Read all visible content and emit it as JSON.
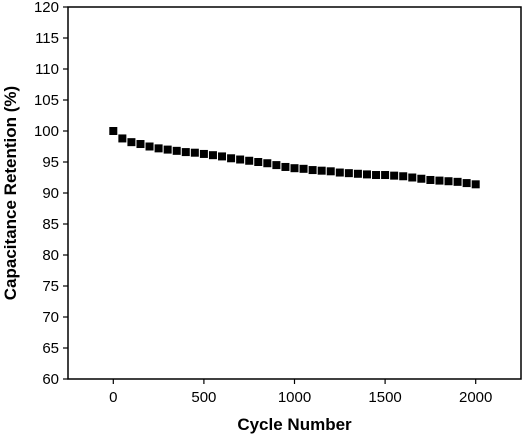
{
  "chart_data": {
    "type": "scatter",
    "title": "",
    "xlabel": "Cycle Number",
    "ylabel": "Capacitance Retention (%)",
    "xlim": [
      -250,
      2250
    ],
    "ylim": [
      60,
      120
    ],
    "x_ticks": [
      0,
      500,
      1000,
      1500,
      2000
    ],
    "y_ticks": [
      60,
      65,
      70,
      75,
      80,
      85,
      90,
      95,
      100,
      105,
      110,
      115,
      120
    ],
    "x_tick_labels": [
      "0",
      "500",
      "1000",
      "1500",
      "2000"
    ],
    "y_tick_labels": [
      "60",
      "65",
      "70",
      "75",
      "80",
      "85",
      "90",
      "95",
      "100",
      "105",
      "110",
      "115",
      "120"
    ],
    "grid": false,
    "marker": "square",
    "marker_color": "#000000",
    "series": [
      {
        "x": [
          0,
          50,
          100,
          150,
          200,
          250,
          300,
          350,
          400,
          450,
          500,
          550,
          600,
          650,
          700,
          750,
          800,
          850,
          900,
          950,
          1000,
          1050,
          1100,
          1150,
          1200,
          1250,
          1300,
          1350,
          1400,
          1450,
          1500,
          1550,
          1600,
          1650,
          1700,
          1750,
          1800,
          1850,
          1900,
          1950,
          2000
        ],
        "values": [
          100.0,
          98.8,
          98.2,
          97.9,
          97.5,
          97.2,
          97.0,
          96.8,
          96.6,
          96.5,
          96.3,
          96.1,
          95.9,
          95.6,
          95.4,
          95.2,
          95.0,
          94.8,
          94.5,
          94.2,
          94.0,
          93.9,
          93.7,
          93.6,
          93.5,
          93.3,
          93.2,
          93.1,
          93.0,
          92.9,
          92.9,
          92.8,
          92.7,
          92.5,
          92.3,
          92.1,
          92.0,
          91.9,
          91.8,
          91.6,
          91.4
        ]
      }
    ]
  }
}
